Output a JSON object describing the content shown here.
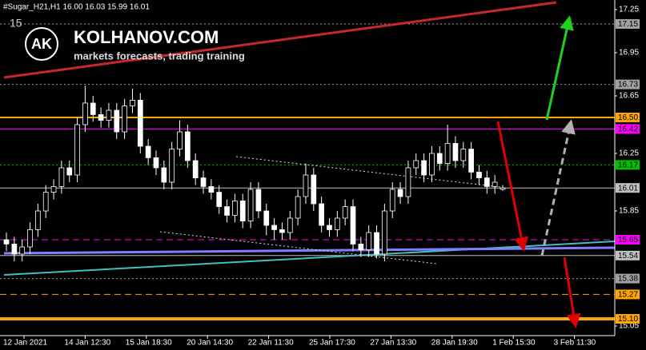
{
  "chart_data": {
    "type": "candlestick",
    "title": "#Sugar_H21,H1  16.00 16.03 15.99 16.01",
    "subtitle": "15",
    "brand": "KOLHANOV.COM",
    "brand_initials": "AK",
    "brand_tagline": "markets forecasts, trading training",
    "categories": [
      "12 Jan 2021",
      "14 Jan 12:30",
      "15 Jan 18:30",
      "20 Jan 14:30",
      "22 Jan 11:30",
      "25 Jan 17:30",
      "27 Jan 13:30",
      "28 Jan 19:30",
      "1 Feb 15:30",
      "3 Feb 11:30"
    ],
    "ylim": [
      15.0,
      17.3
    ],
    "yticks": [
      17.25,
      16.95,
      16.65,
      16.25,
      15.85,
      15.05
    ],
    "levels": [
      {
        "price": 17.15,
        "color": "#a0a0a0",
        "style": "dotted",
        "width": 1
      },
      {
        "price": 16.73,
        "color": "#a0a0a0",
        "style": "dotted",
        "width": 1
      },
      {
        "price": 16.5,
        "label": "16.50",
        "color": "#ffa500",
        "style": "solid",
        "width": 2
      },
      {
        "price": 16.42,
        "color": "#ff00ff",
        "style": "solid",
        "width": 1
      },
      {
        "price": 16.17,
        "color": "#00c000",
        "style": "dotted",
        "width": 1
      },
      {
        "price": 16.01,
        "color": "#c0c0c0",
        "style": "solid",
        "width": 1
      },
      {
        "price": 15.65,
        "color": "#ff00ff",
        "style": "dashed",
        "width": 1
      },
      {
        "price": 15.54,
        "color": "#c0c0c0",
        "style": "solid",
        "width": 1
      },
      {
        "price": 15.38,
        "color": "#a0a0a0",
        "style": "dotted",
        "width": 1
      },
      {
        "price": 15.27,
        "color": "#ffa500",
        "style": "dashed",
        "width": 1
      },
      {
        "price": 15.1,
        "label": "15.10",
        "color": "#ffa500",
        "style": "solid",
        "width": 4
      }
    ],
    "candles": [
      [
        15.65,
        15.7,
        15.57,
        15.62
      ],
      [
        15.62,
        15.67,
        15.5,
        15.55
      ],
      [
        15.55,
        15.65,
        15.5,
        15.6
      ],
      [
        15.6,
        15.77,
        15.55,
        15.72
      ],
      [
        15.72,
        15.9,
        15.67,
        15.85
      ],
      [
        15.85,
        16.03,
        15.8,
        15.98
      ],
      [
        15.98,
        16.07,
        15.93,
        16.02
      ],
      [
        16.02,
        16.2,
        15.97,
        16.15
      ],
      [
        16.15,
        16.2,
        16.05,
        16.1
      ],
      [
        16.1,
        16.5,
        16.05,
        16.45
      ],
      [
        16.45,
        16.72,
        16.4,
        16.6
      ],
      [
        16.6,
        16.65,
        16.47,
        16.52
      ],
      [
        16.52,
        16.57,
        16.43,
        16.48
      ],
      [
        16.48,
        16.6,
        16.43,
        16.55
      ],
      [
        16.55,
        16.6,
        16.35,
        16.4
      ],
      [
        16.4,
        16.63,
        16.35,
        16.58
      ],
      [
        16.58,
        16.7,
        16.53,
        16.62
      ],
      [
        16.62,
        16.67,
        16.25,
        16.3
      ],
      [
        16.3,
        16.35,
        16.17,
        16.22
      ],
      [
        16.22,
        16.27,
        16.1,
        16.15
      ],
      [
        16.15,
        16.2,
        16.0,
        16.05
      ],
      [
        16.05,
        16.33,
        16.0,
        16.28
      ],
      [
        16.28,
        16.48,
        16.23,
        16.4
      ],
      [
        16.4,
        16.45,
        16.15,
        16.2
      ],
      [
        16.2,
        16.25,
        16.03,
        16.08
      ],
      [
        16.08,
        16.13,
        15.97,
        16.02
      ],
      [
        16.02,
        16.07,
        15.93,
        15.98
      ],
      [
        15.98,
        16.03,
        15.83,
        15.88
      ],
      [
        15.88,
        15.93,
        15.77,
        15.82
      ],
      [
        15.82,
        15.97,
        15.77,
        15.92
      ],
      [
        15.92,
        15.97,
        15.73,
        15.78
      ],
      [
        15.78,
        16.05,
        15.73,
        16.0
      ],
      [
        16.0,
        16.05,
        15.8,
        15.85
      ],
      [
        15.85,
        15.9,
        15.68,
        15.75
      ],
      [
        15.75,
        15.8,
        15.65,
        15.72
      ],
      [
        15.72,
        15.77,
        15.65,
        15.7
      ],
      [
        15.7,
        15.85,
        15.65,
        15.8
      ],
      [
        15.8,
        16.0,
        15.75,
        15.95
      ],
      [
        15.95,
        16.18,
        15.9,
        16.1
      ],
      [
        16.1,
        16.15,
        15.85,
        15.9
      ],
      [
        15.9,
        15.95,
        15.7,
        15.75
      ],
      [
        15.75,
        15.8,
        15.67,
        15.72
      ],
      [
        15.72,
        15.85,
        15.67,
        15.8
      ],
      [
        15.8,
        15.93,
        15.75,
        15.88
      ],
      [
        15.88,
        15.93,
        15.57,
        15.62
      ],
      [
        15.62,
        15.67,
        15.53,
        15.58
      ],
      [
        15.58,
        15.75,
        15.53,
        15.7
      ],
      [
        15.7,
        15.75,
        15.52,
        15.55
      ],
      [
        15.55,
        15.9,
        15.5,
        15.85
      ],
      [
        15.85,
        16.05,
        15.8,
        16.0
      ],
      [
        16.0,
        16.05,
        15.9,
        15.95
      ],
      [
        15.95,
        16.2,
        15.9,
        16.15
      ],
      [
        16.15,
        16.25,
        16.1,
        16.2
      ],
      [
        16.2,
        16.25,
        16.05,
        16.1
      ],
      [
        16.1,
        16.3,
        16.05,
        16.25
      ],
      [
        16.25,
        16.3,
        16.13,
        16.18
      ],
      [
        16.18,
        16.45,
        16.13,
        16.32
      ],
      [
        16.32,
        16.37,
        16.15,
        16.2
      ],
      [
        16.2,
        16.33,
        16.15,
        16.28
      ],
      [
        16.28,
        16.33,
        16.07,
        16.12
      ],
      [
        16.12,
        16.17,
        16.03,
        16.08
      ],
      [
        16.08,
        16.13,
        15.97,
        16.02
      ],
      [
        16.02,
        16.1,
        15.97,
        16.05
      ],
      [
        16.0,
        16.03,
        15.99,
        16.01
      ]
    ]
  }
}
